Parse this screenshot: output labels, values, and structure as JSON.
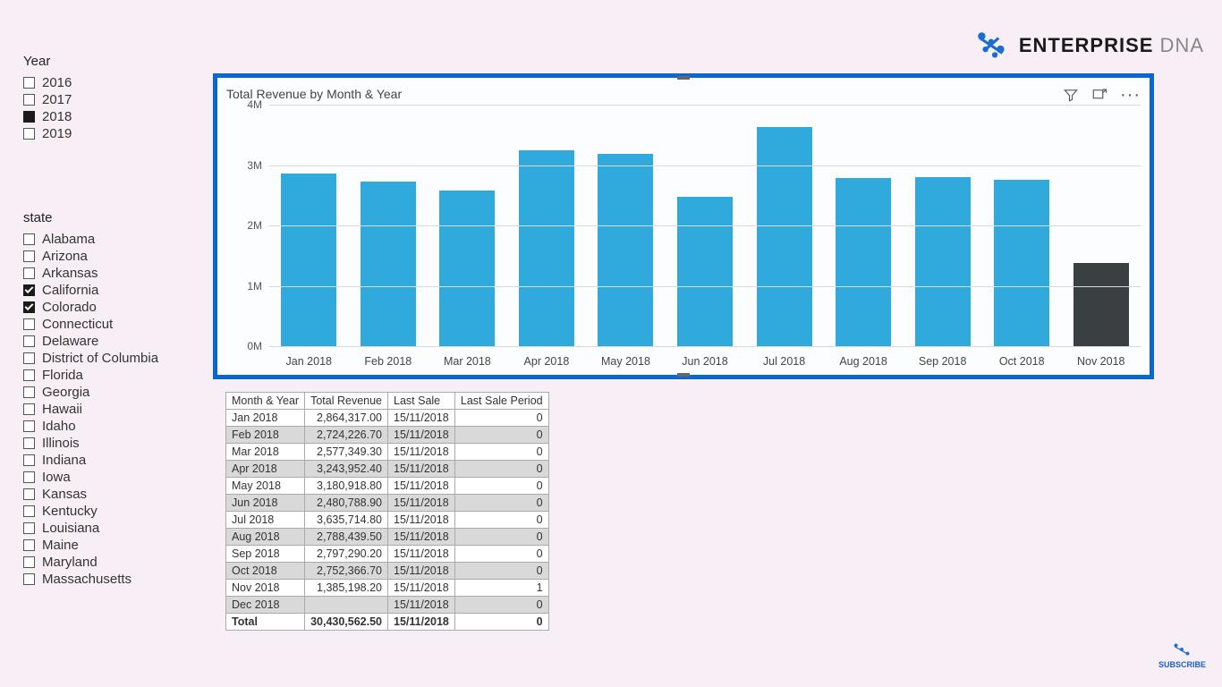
{
  "logo": {
    "brand_a": "ENTERPRISE",
    "brand_b": " DNA",
    "icon_color": "#1a6dd6"
  },
  "year_slicer": {
    "title": "Year",
    "items": [
      {
        "label": "2016",
        "checked": false
      },
      {
        "label": "2017",
        "checked": false
      },
      {
        "label": "2018",
        "checked": true,
        "solid": true
      },
      {
        "label": "2019",
        "checked": false
      }
    ]
  },
  "state_slicer": {
    "title": "state",
    "items": [
      {
        "label": "Alabama",
        "checked": false
      },
      {
        "label": "Arizona",
        "checked": false
      },
      {
        "label": "Arkansas",
        "checked": false
      },
      {
        "label": "California",
        "checked": true
      },
      {
        "label": "Colorado",
        "checked": true
      },
      {
        "label": "Connecticut",
        "checked": false
      },
      {
        "label": "Delaware",
        "checked": false
      },
      {
        "label": "District of Columbia",
        "checked": false
      },
      {
        "label": "Florida",
        "checked": false
      },
      {
        "label": "Georgia",
        "checked": false
      },
      {
        "label": "Hawaii",
        "checked": false
      },
      {
        "label": "Idaho",
        "checked": false
      },
      {
        "label": "Illinois",
        "checked": false
      },
      {
        "label": "Indiana",
        "checked": false
      },
      {
        "label": "Iowa",
        "checked": false
      },
      {
        "label": "Kansas",
        "checked": false
      },
      {
        "label": "Kentucky",
        "checked": false
      },
      {
        "label": "Louisiana",
        "checked": false
      },
      {
        "label": "Maine",
        "checked": false
      },
      {
        "label": "Maryland",
        "checked": false
      },
      {
        "label": "Massachusetts",
        "checked": false
      }
    ]
  },
  "chart": {
    "title": "Total Revenue by Month & Year",
    "type": "bar",
    "y_max": 4000000,
    "y_ticks": [
      {
        "v": 0,
        "label": "0M"
      },
      {
        "v": 1000000,
        "label": "1M"
      },
      {
        "v": 2000000,
        "label": "2M"
      },
      {
        "v": 3000000,
        "label": "3M"
      },
      {
        "v": 4000000,
        "label": "4M"
      }
    ],
    "default_color": "#30aadc",
    "highlight_color": "#3a3f42",
    "grid_color": "#d9d9d9",
    "border_color": "#0a66d0",
    "bars": [
      {
        "label": "Jan 2018",
        "value": 2864317.0
      },
      {
        "label": "Feb 2018",
        "value": 2724226.7
      },
      {
        "label": "Mar 2018",
        "value": 2577349.3
      },
      {
        "label": "Apr 2018",
        "value": 3243952.4
      },
      {
        "label": "May 2018",
        "value": 3180918.8
      },
      {
        "label": "Jun 2018",
        "value": 2480788.9
      },
      {
        "label": "Jul 2018",
        "value": 3635714.8
      },
      {
        "label": "Aug 2018",
        "value": 2788439.5
      },
      {
        "label": "Sep 2018",
        "value": 2797290.2
      },
      {
        "label": "Oct 2018",
        "value": 2752366.7
      },
      {
        "label": "Nov 2018",
        "value": 1385198.2,
        "highlight": true
      }
    ]
  },
  "table": {
    "columns": [
      "Month & Year",
      "Total Revenue",
      "Last Sale",
      "Last Sale Period"
    ],
    "col_align": [
      "left",
      "right",
      "left",
      "right"
    ],
    "rows": [
      [
        "Jan 2018",
        "2,864,317.00",
        "15/11/2018",
        "0"
      ],
      [
        "Feb 2018",
        "2,724,226.70",
        "15/11/2018",
        "0"
      ],
      [
        "Mar 2018",
        "2,577,349.30",
        "15/11/2018",
        "0"
      ],
      [
        "Apr 2018",
        "3,243,952.40",
        "15/11/2018",
        "0"
      ],
      [
        "May 2018",
        "3,180,918.80",
        "15/11/2018",
        "0"
      ],
      [
        "Jun 2018",
        "2,480,788.90",
        "15/11/2018",
        "0"
      ],
      [
        "Jul 2018",
        "3,635,714.80",
        "15/11/2018",
        "0"
      ],
      [
        "Aug 2018",
        "2,788,439.50",
        "15/11/2018",
        "0"
      ],
      [
        "Sep 2018",
        "2,797,290.20",
        "15/11/2018",
        "0"
      ],
      [
        "Oct 2018",
        "2,752,366.70",
        "15/11/2018",
        "0"
      ],
      [
        "Nov 2018",
        "1,385,198.20",
        "15/11/2018",
        "1"
      ],
      [
        "Dec 2018",
        "",
        "15/11/2018",
        "0"
      ]
    ],
    "total": [
      "Total",
      "30,430,562.50",
      "15/11/2018",
      "0"
    ]
  },
  "subscribe_label": "SUBSCRIBE"
}
